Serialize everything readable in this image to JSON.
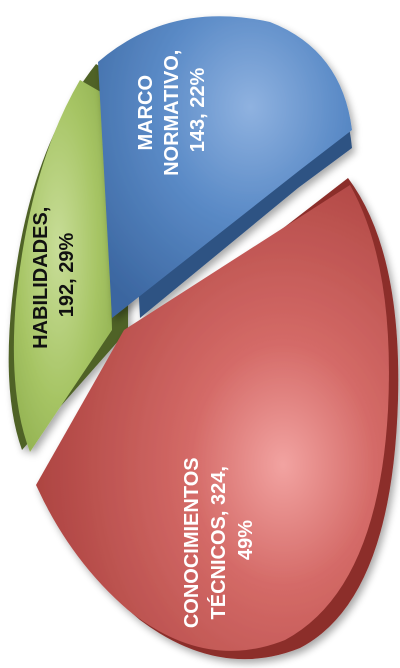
{
  "chart_data": {
    "type": "pie",
    "title": "",
    "style": "3d-exploded",
    "slices": [
      {
        "label": "CONOCIMIENTOS TÉCNICOS",
        "value": 324,
        "percent": "49%",
        "text_lines": [
          "CONOCIMIENTOS",
          "TÉCNICOS, 324,",
          "49%"
        ],
        "color": "#c0504d",
        "side_color": "#8c2f2c",
        "text_color": "#ffffff"
      },
      {
        "label": "MARCO NORMATIVO",
        "value": 143,
        "percent": "22%",
        "text_lines": [
          "MARCO",
          "NORMATIVO,",
          "143, 22%"
        ],
        "color": "#4f81bd",
        "side_color": "#2f5383",
        "text_color": "#ffffff"
      },
      {
        "label": "HABILIDADES",
        "value": 192,
        "percent": "29%",
        "text_lines": [
          "HABILIDADES,",
          "192, 29%"
        ],
        "color": "#9bbb59",
        "side_color": "#4f6228",
        "text_color": "#111111"
      }
    ]
  }
}
